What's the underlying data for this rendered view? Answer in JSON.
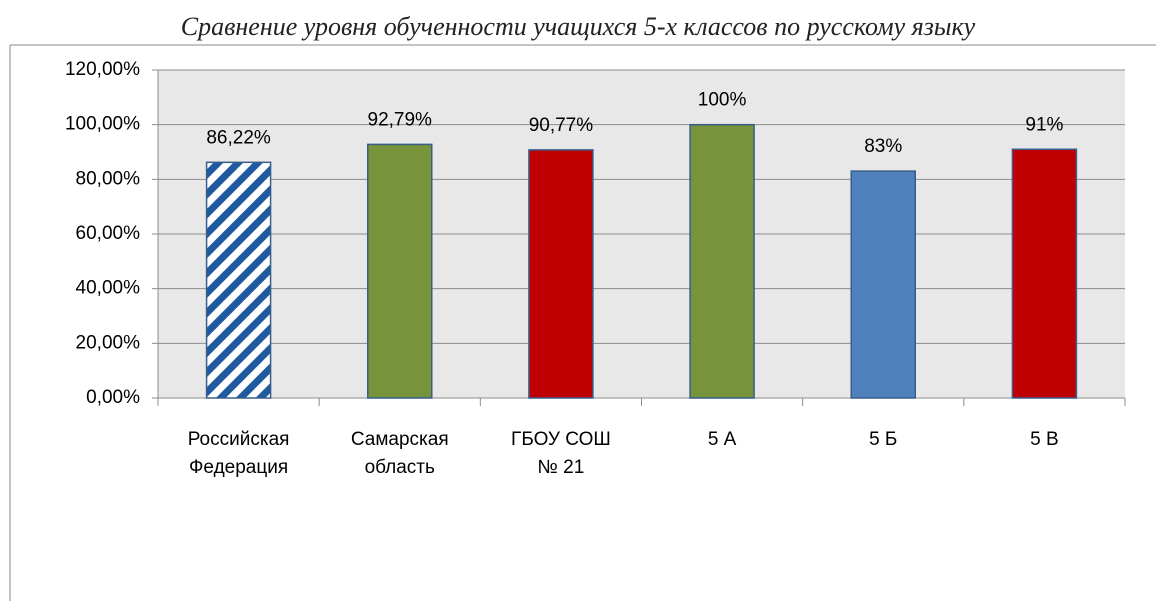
{
  "chart_data": {
    "type": "bar",
    "title": "Сравнение уровня обученности учащихся 5-х классов по русскому языку",
    "categories": [
      "Российская Федерация",
      "Самарская область",
      "ГБОУ СОШ № 21",
      "5 А",
      "5 Б",
      "5 В"
    ],
    "values": [
      86.22,
      92.79,
      90.77,
      100,
      83,
      91
    ],
    "value_labels": [
      "86,22%",
      "92,79%",
      "90,77%",
      "100%",
      "83%",
      "91%"
    ],
    "colors": [
      "#1f5aa0",
      "#77933c",
      "#c00000",
      "#77933c",
      "#4f81bd",
      "#c00000"
    ],
    "fill_patterns": [
      "diagonal",
      null,
      null,
      null,
      null,
      null
    ],
    "ylim": [
      0,
      120
    ],
    "yticks": [
      {
        "value": 0,
        "label": "0,00%"
      },
      {
        "value": 20,
        "label": "20,00%"
      },
      {
        "value": 40,
        "label": "40,00%"
      },
      {
        "value": 60,
        "label": "60,00%"
      },
      {
        "value": 80,
        "label": "80,00%"
      },
      {
        "value": 100,
        "label": "100,00%"
      },
      {
        "value": 120,
        "label": "120,00%"
      }
    ],
    "grid": true
  }
}
